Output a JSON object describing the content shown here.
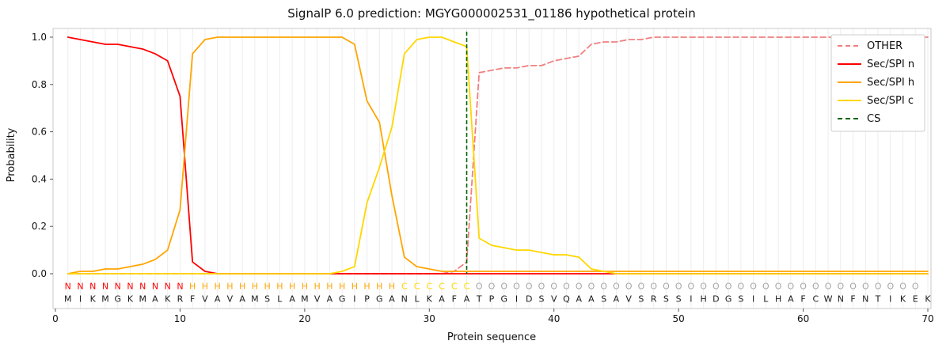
{
  "chart_data": {
    "type": "line",
    "title": "SignalP 6.0 prediction: MGYG000002531_01186 hypothetical protein",
    "xlabel": "Protein sequence",
    "ylabel": "Probability",
    "xlim": [
      0,
      70
    ],
    "ylim": [
      0.0,
      1.0
    ],
    "x_ticks": [
      0,
      10,
      20,
      30,
      40,
      50,
      60,
      70
    ],
    "y_ticks": [
      0.0,
      0.2,
      0.4,
      0.6,
      0.8,
      1.0
    ],
    "grid": "light vertical gridline at every residue position",
    "legend_position": "upper right",
    "x": [
      1,
      2,
      3,
      4,
      5,
      6,
      7,
      8,
      9,
      10,
      11,
      12,
      13,
      14,
      15,
      16,
      17,
      18,
      19,
      20,
      21,
      22,
      23,
      24,
      25,
      26,
      27,
      28,
      29,
      30,
      31,
      32,
      33,
      34,
      35,
      36,
      37,
      38,
      39,
      40,
      41,
      42,
      43,
      44,
      45,
      46,
      47,
      48,
      49,
      50,
      51,
      52,
      53,
      54,
      55,
      56,
      57,
      58,
      59,
      60,
      61,
      62,
      63,
      64,
      65,
      66,
      67,
      68,
      69,
      70
    ],
    "series": [
      {
        "name": "OTHER",
        "color": "#f08080",
        "dash": true,
        "values": [
          0,
          0,
          0,
          0,
          0,
          0,
          0,
          0,
          0,
          0,
          0,
          0,
          0,
          0,
          0,
          0,
          0,
          0,
          0,
          0,
          0,
          0,
          0,
          0,
          0,
          0,
          0,
          0,
          0,
          0,
          0,
          0.01,
          0.05,
          0.85,
          0.86,
          0.87,
          0.87,
          0.88,
          0.88,
          0.9,
          0.91,
          0.92,
          0.97,
          0.98,
          0.98,
          0.99,
          0.99,
          1.0,
          1.0,
          1.0,
          1.0,
          1.0,
          1.0,
          1.0,
          1.0,
          1.0,
          1.0,
          1.0,
          1.0,
          1.0,
          1.0,
          1.0,
          1.0,
          1.0,
          1.0,
          1.0,
          1.0,
          1.0,
          1.0,
          1.0
        ]
      },
      {
        "name": "Sec/SPI n",
        "color": "#ff0000",
        "dash": false,
        "values": [
          1.0,
          0.99,
          0.98,
          0.97,
          0.97,
          0.96,
          0.95,
          0.93,
          0.9,
          0.75,
          0.05,
          0.01,
          0,
          0,
          0,
          0,
          0,
          0,
          0,
          0,
          0,
          0,
          0,
          0,
          0,
          0,
          0,
          0,
          0,
          0,
          0,
          0,
          0,
          0,
          0,
          0,
          0,
          0,
          0,
          0,
          0,
          0,
          0,
          0,
          0,
          0,
          0,
          0,
          0,
          0,
          0,
          0,
          0,
          0,
          0,
          0,
          0,
          0,
          0,
          0,
          0,
          0,
          0,
          0,
          0,
          0,
          0,
          0,
          0,
          0
        ]
      },
      {
        "name": "Sec/SPI h",
        "color": "#ffa500",
        "dash": false,
        "values": [
          0,
          0.01,
          0.01,
          0.02,
          0.02,
          0.03,
          0.04,
          0.06,
          0.1,
          0.27,
          0.93,
          0.99,
          1.0,
          1.0,
          1.0,
          1.0,
          1.0,
          1.0,
          1.0,
          1.0,
          1.0,
          1.0,
          1.0,
          0.97,
          0.73,
          0.64,
          0.33,
          0.07,
          0.03,
          0.02,
          0.01,
          0.01,
          0.01,
          0.01,
          0.01,
          0.01,
          0.01,
          0.01,
          0.01,
          0.01,
          0.01,
          0.01,
          0.01,
          0.01,
          0.01,
          0.01,
          0.01,
          0.01,
          0.01,
          0.01,
          0.01,
          0.01,
          0.01,
          0.01,
          0.01,
          0.01,
          0.01,
          0.01,
          0.01,
          0.01,
          0.01,
          0.01,
          0.01,
          0.01,
          0.01,
          0.01,
          0.01,
          0.01,
          0.01,
          0.01
        ]
      },
      {
        "name": "Sec/SPI c",
        "color": "#ffd700",
        "dash": false,
        "values": [
          0,
          0,
          0,
          0,
          0,
          0,
          0,
          0,
          0,
          0,
          0,
          0,
          0,
          0,
          0,
          0,
          0,
          0,
          0,
          0,
          0,
          0,
          0.01,
          0.03,
          0.3,
          0.45,
          0.62,
          0.93,
          0.99,
          1.0,
          1.0,
          0.98,
          0.96,
          0.15,
          0.12,
          0.11,
          0.1,
          0.1,
          0.09,
          0.08,
          0.08,
          0.07,
          0.02,
          0.01,
          0,
          0,
          0,
          0,
          0,
          0,
          0,
          0,
          0,
          0,
          0,
          0,
          0,
          0,
          0,
          0,
          0,
          0,
          0,
          0,
          0,
          0,
          0,
          0,
          0,
          0
        ]
      }
    ],
    "cs_line": {
      "label": "CS",
      "position": 33,
      "color": "#006400",
      "dash": true
    },
    "legend": [
      {
        "label": "OTHER",
        "color": "#f08080",
        "dash": true
      },
      {
        "label": "Sec/SPI n",
        "color": "#ff0000",
        "dash": false
      },
      {
        "label": "Sec/SPI h",
        "color": "#ffa500",
        "dash": false
      },
      {
        "label": "Sec/SPI c",
        "color": "#ffd700",
        "dash": false
      },
      {
        "label": "CS",
        "color": "#006400",
        "dash": true
      }
    ],
    "sequence": "MIKMGKMAKRFVAVAMSLAMVAGIPGANLKAFATPGIDSVQAASAVSRSSIHDGSILHAFCWNFNTIKEK",
    "regions": "NNNNNNNNNNHHHHHHHHHHHHHHHHHCCCCCCOOOOOOOOOOOOOOOOOOOOOOOOOOOOOOOOOOOO",
    "region_colors": {
      "N": "#ff0000",
      "H": "#ffa500",
      "C": "#ffd700",
      "O": "#a6a6a6"
    },
    "sequence_color": "#1a1a1a"
  }
}
